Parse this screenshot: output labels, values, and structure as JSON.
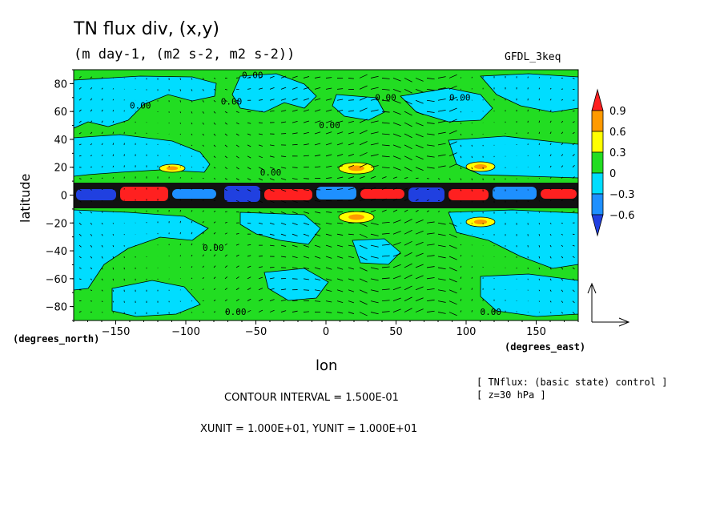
{
  "chart_data": {
    "type": "heatmap",
    "title": "TN flux div, (x,y)",
    "subtitle": "(m day-1, (m2 s-2, m2 s-2))",
    "model_label": "GFDL_3keq",
    "xlabel": "lon",
    "ylabel": "latitude",
    "x_unit_label": "(degrees_east)",
    "y_unit_label": "(degrees_north)",
    "xlim": [
      -180,
      180
    ],
    "ylim": [
      -90,
      90
    ],
    "x_ticks": [
      -150,
      -100,
      -50,
      0,
      50,
      100,
      150
    ],
    "y_ticks": [
      -80,
      -60,
      -40,
      -20,
      0,
      20,
      40,
      60,
      80
    ],
    "colorbar": {
      "levels": [
        0.9,
        0.6,
        0.3,
        0,
        -0.3,
        -0.6
      ],
      "colors": [
        "#ff2020",
        "#ff9a00",
        "#ffff00",
        "#22dd22",
        "#00ddff",
        "#1e90ff",
        "#2040e0"
      ]
    },
    "contour_labels": [
      "0.00"
    ],
    "info_line1": "[ TNflux: (basic state) control ]",
    "info_line2": "[ z=30 hPa ]",
    "contour_interval": "CONTOUR INTERVAL = 1.500E-01",
    "vector_units": "XUNIT = 1.000E+01, YUNIT = 1.000E+01"
  }
}
